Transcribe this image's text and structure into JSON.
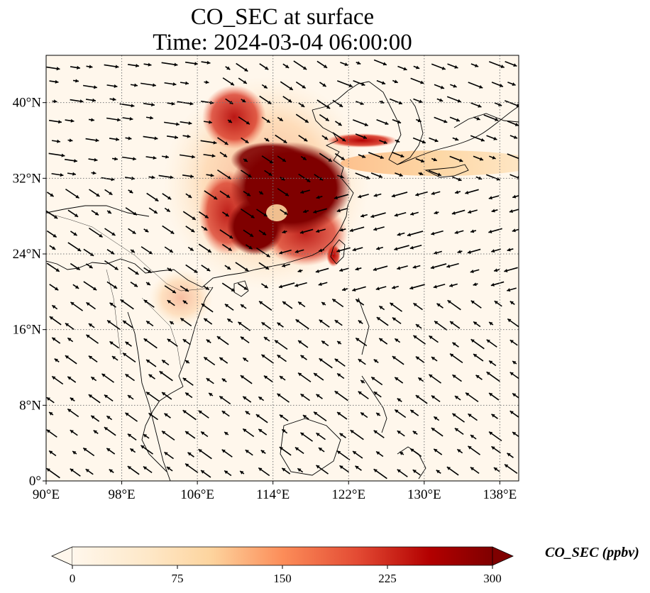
{
  "title": {
    "line1": "CO_SEC at surface",
    "line2": "Time: 2024-03-04 06:00:00"
  },
  "map": {
    "extent": {
      "lon": [
        90,
        140
      ],
      "lat": [
        0,
        45
      ]
    },
    "lon_ticks": [
      {
        "value": 90,
        "label": "90°E"
      },
      {
        "value": 98,
        "label": "98°E"
      },
      {
        "value": 106,
        "label": "106°E"
      },
      {
        "value": 114,
        "label": "114°E"
      },
      {
        "value": 122,
        "label": "122°E"
      },
      {
        "value": 130,
        "label": "130°E"
      },
      {
        "value": 138,
        "label": "138°E"
      }
    ],
    "lat_ticks": [
      {
        "value": 0,
        "label": "0°"
      },
      {
        "value": 8,
        "label": "8°N"
      },
      {
        "value": 16,
        "label": "16°N"
      },
      {
        "value": 24,
        "label": "24°N"
      },
      {
        "value": 32,
        "label": "32°N"
      },
      {
        "value": 40,
        "label": "40°N"
      }
    ],
    "gridlines": true,
    "colormap": "OrRd",
    "colors": {
      "low": "#fff7ec",
      "mid": "#fdbb84",
      "high": "#7f0000",
      "coast": "#000000",
      "grid": "#888888"
    }
  },
  "colorbar": {
    "min": 0,
    "max": 300,
    "ticks": [
      {
        "value": 0,
        "label": "0"
      },
      {
        "value": 75,
        "label": "75"
      },
      {
        "value": 150,
        "label": "150"
      },
      {
        "value": 225,
        "label": "225"
      },
      {
        "value": 300,
        "label": "300"
      }
    ],
    "label": "CO_SEC (ppbv)",
    "extend": "both"
  }
}
